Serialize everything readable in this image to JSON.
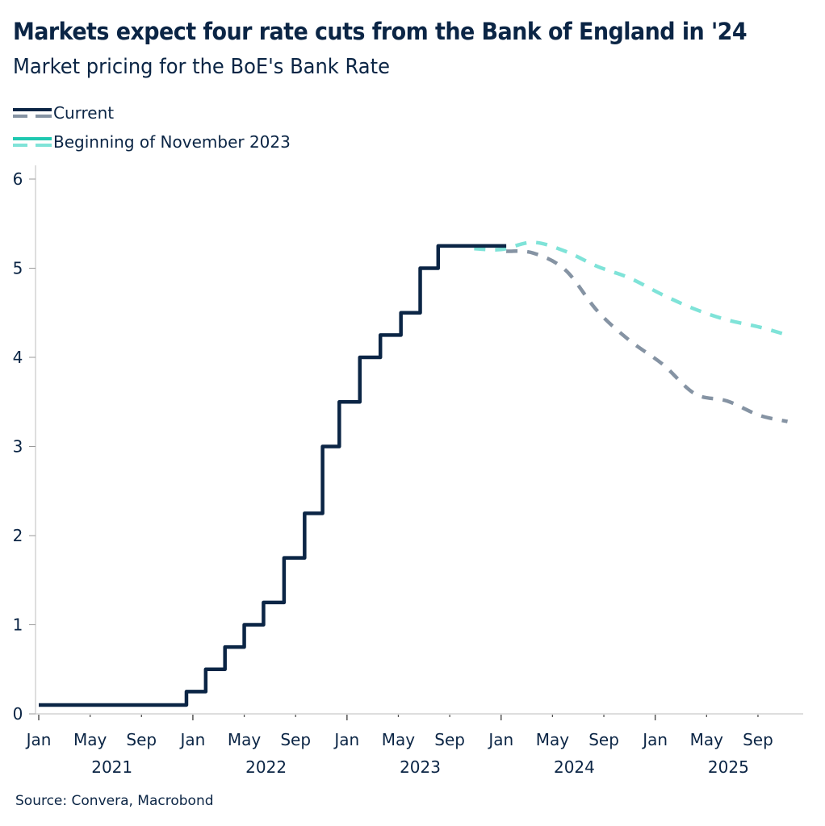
{
  "header": {
    "title": "Markets expect four rate cuts from the Bank of England in '24",
    "subtitle": "Market pricing for the BoE's Bank Rate"
  },
  "legend": [
    {
      "label": "Current",
      "solid_color": "#0b2545",
      "dashed_color": "#8593a3"
    },
    {
      "label": "Beginning of November 2023",
      "solid_color": "#1ec8b0",
      "dashed_color": "#7fe3d8"
    }
  ],
  "footer": {
    "source": "Source: Convera, Macrobond"
  },
  "chart_data": {
    "type": "line",
    "title": "Markets expect four rate cuts from the Bank of England in '24",
    "subtitle": "Market pricing for the BoE's Bank Rate",
    "xlabel": "",
    "ylabel": "",
    "ylim": [
      0,
      6
    ],
    "yticks": [
      0,
      1,
      2,
      3,
      4,
      5,
      6
    ],
    "xlim_months_from_jan2021": [
      0,
      59.5
    ],
    "xticks": [
      {
        "label": "Jan",
        "m": 0,
        "major": true
      },
      {
        "label": "May",
        "m": 4,
        "major": false
      },
      {
        "label": "Sep",
        "m": 8,
        "major": false
      },
      {
        "label": "Jan",
        "m": 12,
        "major": true
      },
      {
        "label": "May",
        "m": 16,
        "major": false
      },
      {
        "label": "Sep",
        "m": 20,
        "major": false
      },
      {
        "label": "Jan",
        "m": 24,
        "major": true
      },
      {
        "label": "May",
        "m": 28,
        "major": false
      },
      {
        "label": "Sep",
        "m": 32,
        "major": false
      },
      {
        "label": "Jan",
        "m": 36,
        "major": true
      },
      {
        "label": "May",
        "m": 40,
        "major": false
      },
      {
        "label": "Sep",
        "m": 44,
        "major": false
      },
      {
        "label": "Jan",
        "m": 48,
        "major": true
      },
      {
        "label": "May",
        "m": 52,
        "major": false
      },
      {
        "label": "Sep",
        "m": 56,
        "major": false
      }
    ],
    "year_labels": [
      {
        "label": "2021",
        "m": 5.7
      },
      {
        "label": "2022",
        "m": 17.7
      },
      {
        "label": "2023",
        "m": 29.7
      },
      {
        "label": "2024",
        "m": 41.7
      },
      {
        "label": "2025",
        "m": 53.7
      }
    ],
    "grid": false,
    "legend_position": "top-left",
    "series": [
      {
        "name": "Current (Bank Rate history)",
        "style": "step-solid",
        "color": "#0b2545",
        "points": [
          {
            "m": 0,
            "v": 0.1
          },
          {
            "m": 11.5,
            "v": 0.25
          },
          {
            "m": 13.0,
            "v": 0.5
          },
          {
            "m": 14.5,
            "v": 0.75
          },
          {
            "m": 16.0,
            "v": 1.0
          },
          {
            "m": 17.5,
            "v": 1.25
          },
          {
            "m": 19.1,
            "v": 1.75
          },
          {
            "m": 20.7,
            "v": 2.25
          },
          {
            "m": 22.1,
            "v": 3.0
          },
          {
            "m": 23.4,
            "v": 3.5
          },
          {
            "m": 25.0,
            "v": 4.0
          },
          {
            "m": 26.6,
            "v": 4.25
          },
          {
            "m": 28.2,
            "v": 4.5
          },
          {
            "m": 29.7,
            "v": 5.0
          },
          {
            "m": 31.1,
            "v": 5.25
          },
          {
            "m": 36.4,
            "v": 5.25
          }
        ]
      },
      {
        "name": "Current (market pricing)",
        "style": "dashed",
        "color": "#8593a3",
        "points": [
          {
            "m": 36.4,
            "v": 5.19
          },
          {
            "m": 38.5,
            "v": 5.17
          },
          {
            "m": 41.0,
            "v": 4.98
          },
          {
            "m": 43.5,
            "v": 4.52
          },
          {
            "m": 46.0,
            "v": 4.19
          },
          {
            "m": 48.6,
            "v": 3.92
          },
          {
            "m": 51.1,
            "v": 3.59
          },
          {
            "m": 53.6,
            "v": 3.51
          },
          {
            "m": 56.1,
            "v": 3.35
          },
          {
            "m": 58.3,
            "v": 3.28
          }
        ]
      },
      {
        "name": "Beginning of November 2023",
        "style": "dashed",
        "color": "#7fe3d8",
        "points": [
          {
            "m": 33.9,
            "v": 5.22
          },
          {
            "m": 36.0,
            "v": 5.21
          },
          {
            "m": 38.5,
            "v": 5.29
          },
          {
            "m": 41.0,
            "v": 5.19
          },
          {
            "m": 43.5,
            "v": 5.02
          },
          {
            "m": 46.0,
            "v": 4.89
          },
          {
            "m": 48.6,
            "v": 4.7
          },
          {
            "m": 51.1,
            "v": 4.54
          },
          {
            "m": 53.6,
            "v": 4.42
          },
          {
            "m": 56.1,
            "v": 4.34
          },
          {
            "m": 58.3,
            "v": 4.25
          }
        ]
      }
    ]
  }
}
